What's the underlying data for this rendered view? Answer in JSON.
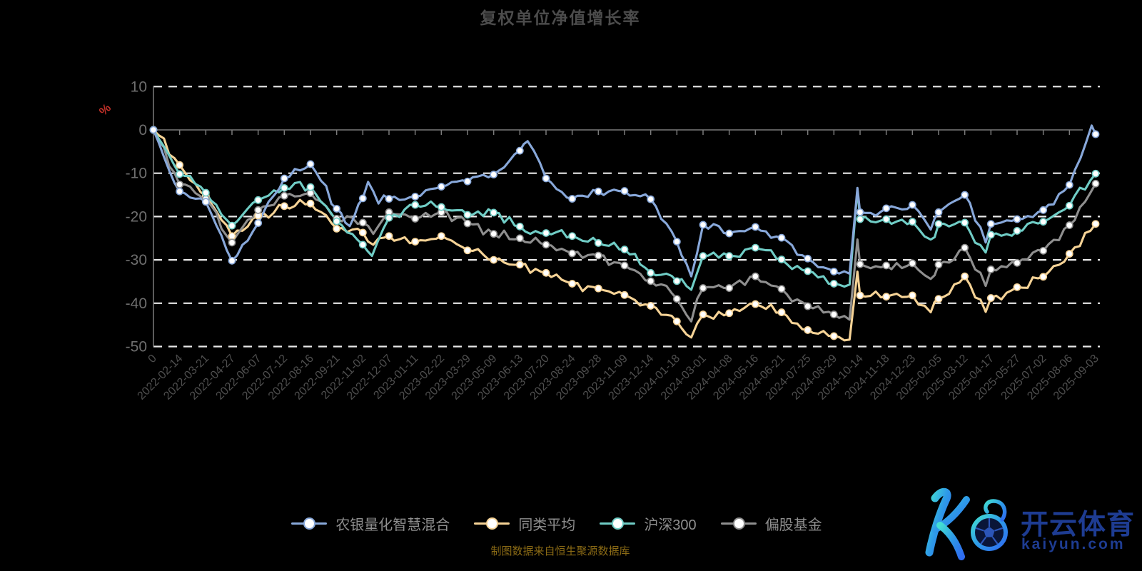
{
  "title": "复权单位净值增长率",
  "footer": "制图数据来自恒生聚源数据库",
  "y_axis": {
    "unit": "%",
    "ticks": [
      10,
      0,
      -10,
      -20,
      -30,
      -40,
      -50
    ]
  },
  "watermark": {
    "brand": "开云体育",
    "domain": "kaiyun.com"
  },
  "colors": {
    "background": "#000000",
    "grid": "#e8e8e8",
    "axis": "#7a7a7a",
    "y_tick_label": "#6e6e6e",
    "x_tick_label": "#4f4f4f",
    "title": "#4c4c4c",
    "unit": "#c03028",
    "legend_text": "#8f8f8f",
    "footer": "#8a6a15",
    "watermark_text": "#20409a"
  },
  "chart_data": {
    "type": "line",
    "title": "复权单位净值增长率",
    "ylabel": "%",
    "ylim": [
      -50,
      10
    ],
    "grid": "horizontal-dashed",
    "legend_position": "bottom",
    "x": [
      "0",
      "2022-02-14",
      "2022-03-21",
      "2022-04-27",
      "2022-06-07",
      "2022-07-12",
      "2022-08-16",
      "2022-09-21",
      "2022-11-02",
      "2022-12-07",
      "2023-01-11",
      "2023-02-22",
      "2023-03-29",
      "2023-05-09",
      "2023-06-13",
      "2023-07-20",
      "2023-08-24",
      "2023-09-28",
      "2023-11-09",
      "2023-12-14",
      "2024-01-18",
      "2024-03-01",
      "2024-04-08",
      "2024-05-16",
      "2024-06-21",
      "2024-07-25",
      "2024-08-29",
      "2024-10-14",
      "2024-11-18",
      "2024-12-23",
      "2025-02-05",
      "2025-03-12",
      "2025-04-17",
      "2025-05-27",
      "2025-07-02",
      "2025-08-06",
      "2025-09-03"
    ],
    "series": [
      {
        "name": "农银量化智慧混合",
        "key": "fund",
        "color": "#88a8da",
        "points": [
          [
            0,
            0
          ],
          [
            1,
            -14.2
          ],
          [
            2,
            -16.6
          ],
          [
            3,
            -30.2
          ],
          [
            4,
            -21.5
          ],
          [
            5,
            -11.2
          ],
          [
            6,
            -7.9
          ],
          [
            7,
            -18.2
          ],
          [
            7.5,
            -22.2
          ],
          [
            8,
            -15.8
          ],
          [
            8.2,
            -12.0
          ],
          [
            8.6,
            -17.0
          ],
          [
            9,
            -15.9
          ],
          [
            10,
            -15.4
          ],
          [
            11,
            -13.1
          ],
          [
            12,
            -11.9
          ],
          [
            13,
            -10.3
          ],
          [
            14,
            -4.8
          ],
          [
            14.3,
            -2.6
          ],
          [
            15,
            -11.2
          ],
          [
            16,
            -15.9
          ],
          [
            17,
            -14.2
          ],
          [
            18,
            -14.1
          ],
          [
            19,
            -16.0
          ],
          [
            20,
            -25.8
          ],
          [
            20.55,
            -33.8
          ],
          [
            21,
            -21.9
          ],
          [
            22,
            -23.9
          ],
          [
            23,
            -22.4
          ],
          [
            24,
            -24.9
          ],
          [
            25,
            -29.7
          ],
          [
            26,
            -32.7
          ],
          [
            26.6,
            -33.2
          ],
          [
            26.9,
            -13.4
          ],
          [
            27,
            -19.0
          ],
          [
            28,
            -18.1
          ],
          [
            29,
            -17.3
          ],
          [
            29.7,
            -23.0
          ],
          [
            30,
            -19.0
          ],
          [
            31,
            -15.0
          ],
          [
            31.8,
            -26.0
          ],
          [
            32,
            -21.7
          ],
          [
            33,
            -20.6
          ],
          [
            34,
            -18.5
          ],
          [
            35,
            -12.7
          ],
          [
            35.85,
            1.0
          ],
          [
            36,
            -1.0
          ]
        ]
      },
      {
        "name": "同类平均",
        "key": "peer-avg",
        "color": "#f6d396",
        "points": [
          [
            0,
            0
          ],
          [
            1,
            -8.1
          ],
          [
            2,
            -15.2
          ],
          [
            3,
            -24.5
          ],
          [
            4,
            -19.8
          ],
          [
            5,
            -17.6
          ],
          [
            6,
            -17.0
          ],
          [
            7,
            -22.8
          ],
          [
            8,
            -23.7
          ],
          [
            8.4,
            -26.5
          ],
          [
            9,
            -24.5
          ],
          [
            10,
            -25.8
          ],
          [
            11,
            -24.5
          ],
          [
            12,
            -27.8
          ],
          [
            13,
            -30.0
          ],
          [
            14,
            -31.1
          ],
          [
            15,
            -33.0
          ],
          [
            16,
            -35.5
          ],
          [
            17,
            -36.6
          ],
          [
            18,
            -38.1
          ],
          [
            19,
            -40.6
          ],
          [
            20,
            -44.2
          ],
          [
            20.55,
            -47.9
          ],
          [
            21,
            -42.6
          ],
          [
            22,
            -42.3
          ],
          [
            23,
            -40.2
          ],
          [
            24,
            -42.1
          ],
          [
            25,
            -46.2
          ],
          [
            26,
            -47.6
          ],
          [
            26.6,
            -48.4
          ],
          [
            26.9,
            -32.7
          ],
          [
            27,
            -38.2
          ],
          [
            28,
            -38.5
          ],
          [
            29,
            -38.2
          ],
          [
            29.7,
            -42.1
          ],
          [
            30,
            -39.0
          ],
          [
            31,
            -33.8
          ],
          [
            31.8,
            -42.0
          ],
          [
            32,
            -38.8
          ],
          [
            33,
            -36.3
          ],
          [
            34,
            -33.9
          ],
          [
            35,
            -28.6
          ],
          [
            36,
            -21.7
          ]
        ]
      },
      {
        "name": "沪深300",
        "key": "hs300",
        "color": "#70cdc6",
        "points": [
          [
            0,
            0
          ],
          [
            1,
            -10.2
          ],
          [
            2,
            -14.5
          ],
          [
            3,
            -22.1
          ],
          [
            4,
            -16.2
          ],
          [
            5,
            -13.4
          ],
          [
            6,
            -13.2
          ],
          [
            7,
            -21.1
          ],
          [
            8,
            -26.5
          ],
          [
            8.35,
            -29.1
          ],
          [
            9,
            -20.3
          ],
          [
            10,
            -17.3
          ],
          [
            11,
            -17.8
          ],
          [
            12,
            -19.6
          ],
          [
            13,
            -19.1
          ],
          [
            14,
            -22.3
          ],
          [
            15,
            -23.8
          ],
          [
            16,
            -24.5
          ],
          [
            17,
            -26.1
          ],
          [
            18,
            -27.6
          ],
          [
            19,
            -33.0
          ],
          [
            20,
            -34.9
          ],
          [
            20.55,
            -36.9
          ],
          [
            21,
            -29.1
          ],
          [
            22,
            -29.1
          ],
          [
            23,
            -27.2
          ],
          [
            24,
            -29.9
          ],
          [
            25,
            -32.6
          ],
          [
            26,
            -35.5
          ],
          [
            26.6,
            -35.7
          ],
          [
            26.9,
            -13.7
          ],
          [
            27,
            -20.6
          ],
          [
            28,
            -20.6
          ],
          [
            29,
            -21.2
          ],
          [
            29.7,
            -25.3
          ],
          [
            30,
            -21.7
          ],
          [
            31,
            -21.4
          ],
          [
            31.8,
            -28.3
          ],
          [
            32,
            -24.2
          ],
          [
            33,
            -23.3
          ],
          [
            34,
            -21.2
          ],
          [
            35,
            -17.5
          ],
          [
            36,
            -10.1
          ]
        ]
      },
      {
        "name": "偏股基金",
        "key": "equity-fund",
        "color": "#8f8f8f",
        "points": [
          [
            0,
            0
          ],
          [
            1,
            -12.6
          ],
          [
            2,
            -15.9
          ],
          [
            3,
            -26.0
          ],
          [
            4,
            -18.5
          ],
          [
            5,
            -15.2
          ],
          [
            6,
            -14.6
          ],
          [
            7,
            -20.5
          ],
          [
            8,
            -21.4
          ],
          [
            8.4,
            -24.0
          ],
          [
            9,
            -19.0
          ],
          [
            10,
            -20.5
          ],
          [
            11,
            -19.0
          ],
          [
            12,
            -21.6
          ],
          [
            13,
            -24.0
          ],
          [
            14,
            -25.0
          ],
          [
            15,
            -26.5
          ],
          [
            16,
            -28.5
          ],
          [
            17,
            -29.0
          ],
          [
            18,
            -31.3
          ],
          [
            19,
            -34.9
          ],
          [
            20,
            -39.0
          ],
          [
            20.55,
            -44.2
          ],
          [
            21,
            -36.5
          ],
          [
            22,
            -36.5
          ],
          [
            23,
            -33.8
          ],
          [
            24,
            -36.7
          ],
          [
            25,
            -40.7
          ],
          [
            26,
            -42.6
          ],
          [
            26.6,
            -43.8
          ],
          [
            26.9,
            -25.3
          ],
          [
            27,
            -31.0
          ],
          [
            28,
            -31.3
          ],
          [
            29,
            -30.8
          ],
          [
            29.7,
            -34.4
          ],
          [
            30,
            -31.1
          ],
          [
            31,
            -27.2
          ],
          [
            31.8,
            -36.0
          ],
          [
            32,
            -32.2
          ],
          [
            33,
            -30.7
          ],
          [
            34,
            -27.9
          ],
          [
            35,
            -22.0
          ],
          [
            36,
            -12.4
          ]
        ]
      }
    ]
  }
}
